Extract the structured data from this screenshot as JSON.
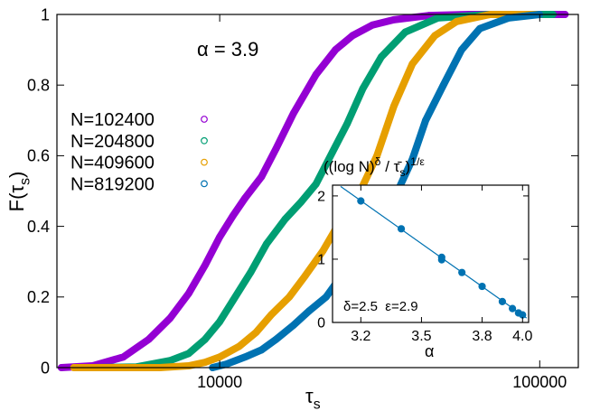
{
  "chart_data": [
    {
      "type": "scatter",
      "log_x": true,
      "xlim": [
        3100,
        132000
      ],
      "ylim": [
        0,
        1
      ],
      "xticks": [
        10000,
        100000
      ],
      "yticks": [
        0,
        0.2,
        0.4,
        0.6,
        0.8,
        1
      ],
      "xlabel": [
        "τ",
        {
          "text": "s",
          "pos": "sub"
        }
      ],
      "ylabel": [
        "F(τ",
        {
          "text": "s",
          "pos": "sub"
        },
        ")"
      ],
      "annotation": "α = 3.9",
      "legend": "left",
      "marker": "open-circle",
      "series": [
        {
          "name": "N=102400",
          "color": "#9400d3",
          "x": [
            3200,
            4000,
            5000,
            6000,
            7000,
            8000,
            9000,
            10000,
            11000,
            12000,
            13500,
            15000,
            17000,
            20000,
            23000,
            26000,
            30000,
            35000,
            45000,
            60000,
            90000,
            110000,
            120000
          ],
          "values": [
            0,
            0.005,
            0.03,
            0.08,
            0.14,
            0.21,
            0.29,
            0.37,
            0.43,
            0.48,
            0.54,
            0.62,
            0.72,
            0.83,
            0.9,
            0.94,
            0.97,
            0.985,
            0.997,
            1,
            1,
            1,
            1
          ]
        },
        {
          "name": "N=204800",
          "color": "#009e73",
          "x": [
            4000,
            5500,
            7000,
            8000,
            9000,
            10000,
            11000,
            12500,
            14000,
            16000,
            18000,
            20000,
            22500,
            25000,
            28000,
            32000,
            38000,
            48000,
            70000,
            110000
          ],
          "values": [
            0,
            0.002,
            0.02,
            0.04,
            0.08,
            0.13,
            0.19,
            0.27,
            0.35,
            0.42,
            0.47,
            0.52,
            0.61,
            0.69,
            0.79,
            0.88,
            0.95,
            0.99,
            1,
            1
          ]
        },
        {
          "name": "N=409600",
          "color": "#e69f00",
          "x": [
            3500,
            6500,
            8000,
            9000,
            10000,
            11500,
            13000,
            14500,
            16500,
            18500,
            21000,
            24000,
            27500,
            31000,
            35000,
            40000,
            47000,
            55000,
            70000,
            100000
          ],
          "values": [
            0,
            0,
            0.005,
            0.015,
            0.03,
            0.06,
            0.1,
            0.15,
            0.2,
            0.26,
            0.33,
            0.42,
            0.5,
            0.6,
            0.74,
            0.86,
            0.94,
            0.98,
            1,
            1
          ]
        },
        {
          "name": "N=819200",
          "color": "#0072b2",
          "x": [
            9500,
            10500,
            12000,
            13500,
            15000,
            17000,
            19000,
            21500,
            24000,
            27000,
            30000,
            33000,
            36000,
            40000,
            44000,
            50000,
            57000,
            65000,
            80000,
            100000
          ],
          "values": [
            0,
            0.01,
            0.03,
            0.05,
            0.08,
            0.12,
            0.16,
            0.2,
            0.26,
            0.33,
            0.4,
            0.45,
            0.5,
            0.59,
            0.7,
            0.8,
            0.9,
            0.96,
            0.99,
            1
          ]
        }
      ]
    },
    {
      "type": "scatter",
      "inset": true,
      "xlim": [
        3.06,
        4.03
      ],
      "ylim": [
        0,
        2.17
      ],
      "xticks": [
        3.2,
        3.5,
        3.8,
        {
          "value": 4,
          "label": "4.0"
        }
      ],
      "yticks": [
        0,
        1,
        2
      ],
      "title": [
        "((log N)",
        {
          "text": "δ",
          "pos": "sup"
        },
        " / τ̄",
        {
          "text": "s",
          "pos": "sub"
        },
        ")",
        {
          "text": "1/ε",
          "pos": "sup"
        }
      ],
      "xlabel": [
        "α"
      ],
      "annotation": "δ=2.5  ε=2.9",
      "series": [
        {
          "color": "#0072b2",
          "marker": "filled-circle",
          "x": [
            3.2,
            3.4,
            3.6,
            3.6,
            3.7,
            3.8,
            3.9,
            3.95,
            3.98,
            4.0
          ],
          "values": [
            1.92,
            1.48,
            1.03,
            0.99,
            0.79,
            0.57,
            0.33,
            0.22,
            0.15,
            0.12
          ]
        },
        {
          "color": "#0072b2",
          "style": "line",
          "x": [
            3.1,
            4.02
          ],
          "values": [
            2.15,
            0.07
          ]
        }
      ]
    }
  ]
}
